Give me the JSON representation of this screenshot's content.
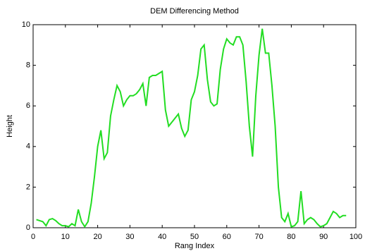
{
  "chart_data": {
    "type": "line",
    "title": "DEM Differencing Method",
    "x_label": "Rang Index",
    "y_label": "Height",
    "x": [
      1,
      2,
      3,
      4,
      5,
      6,
      7,
      8,
      9,
      10,
      11,
      12,
      13,
      14,
      15,
      16,
      17,
      18,
      19,
      20,
      21,
      22,
      23,
      24,
      25,
      26,
      27,
      28,
      29,
      30,
      31,
      32,
      33,
      34,
      35,
      36,
      37,
      38,
      39,
      40,
      41,
      42,
      43,
      44,
      45,
      46,
      47,
      48,
      49,
      50,
      51,
      52,
      53,
      54,
      55,
      56,
      57,
      58,
      59,
      60,
      61,
      62,
      63,
      64,
      65,
      66,
      67,
      68,
      69,
      70,
      71,
      72,
      73,
      74,
      75,
      76,
      77,
      78,
      79,
      80,
      81,
      82,
      83,
      84,
      85,
      86,
      87,
      88,
      89,
      90,
      91,
      92,
      93,
      94,
      95,
      96,
      97
    ],
    "series": [
      {
        "name": "Height",
        "color": "#22dd22",
        "values": [
          0.4,
          0.35,
          0.3,
          0.1,
          0.4,
          0.45,
          0.35,
          0.2,
          0.1,
          0.1,
          0.05,
          0.2,
          0.1,
          0.9,
          0.3,
          0.05,
          0.3,
          1.2,
          2.5,
          4.0,
          4.8,
          3.4,
          3.7,
          5.5,
          6.3,
          7.0,
          6.7,
          6.0,
          6.3,
          6.5,
          6.5,
          6.6,
          6.8,
          7.1,
          6.0,
          7.4,
          7.5,
          7.5,
          7.6,
          7.7,
          5.8,
          5.0,
          5.2,
          5.4,
          5.6,
          4.9,
          4.5,
          4.8,
          6.3,
          6.7,
          7.5,
          8.8,
          9.0,
          7.3,
          6.2,
          6.0,
          6.1,
          7.8,
          8.8,
          9.3,
          9.1,
          9.0,
          9.4,
          9.4,
          9.0,
          7.2,
          5.0,
          3.5,
          6.5,
          8.5,
          9.8,
          8.6,
          8.6,
          7.0,
          5.0,
          2.0,
          0.5,
          0.3,
          0.7,
          0.05,
          0.1,
          0.3,
          1.8,
          0.2,
          0.4,
          0.5,
          0.4,
          0.2,
          0.05,
          0.1,
          0.2,
          0.5,
          0.8,
          0.7,
          0.5,
          0.6,
          0.6
        ]
      }
    ],
    "xlim": [
      0,
      100
    ],
    "xticks": [
      0,
      10,
      20,
      30,
      40,
      50,
      60,
      70,
      80,
      90,
      100
    ],
    "ylim": [
      0,
      10
    ],
    "yticks": [
      0,
      2,
      4,
      6,
      8,
      10
    ]
  }
}
